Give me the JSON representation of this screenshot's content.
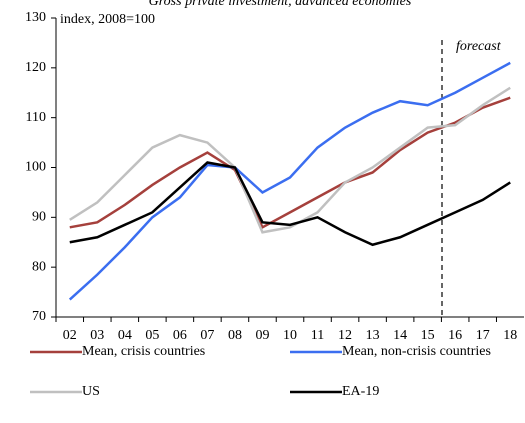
{
  "chart_data": {
    "type": "line",
    "title": "Gross private investment, advanced economies",
    "y_label": "index, 2008=100",
    "annotation": "forecast",
    "categories": [
      "02",
      "03",
      "04",
      "05",
      "06",
      "07",
      "08",
      "09",
      "10",
      "11",
      "12",
      "13",
      "14",
      "15",
      "16",
      "17",
      "18"
    ],
    "series": [
      {
        "name": "Mean, crisis countries",
        "color": "#a5403c",
        "values": [
          88,
          89,
          92.5,
          96.5,
          100,
          103,
          99.5,
          88,
          91,
          94,
          97,
          99,
          103.5,
          107,
          109,
          112,
          114
        ]
      },
      {
        "name": "Mean, non-crisis countries",
        "color": "#3b6ef0",
        "values": [
          73.5,
          78.5,
          84,
          90,
          94,
          100.5,
          100,
          95,
          98,
          104,
          108,
          111,
          113.3,
          112.5,
          115,
          118,
          121
        ]
      },
      {
        "name": "US",
        "color": "#c0c0c0",
        "values": [
          89.5,
          93,
          98.5,
          104,
          106.5,
          105,
          100,
          87,
          88,
          91,
          97,
          100,
          104,
          108,
          108.5,
          112.5,
          116
        ]
      },
      {
        "name": "EA-19",
        "color": "#000000",
        "values": [
          85,
          86,
          88.5,
          91,
          96,
          101,
          100,
          89,
          88.5,
          90,
          87,
          84.5,
          86,
          88.5,
          91,
          93.5,
          97
        ]
      }
    ],
    "ylim": [
      70,
      130
    ],
    "yticks": [
      70,
      80,
      90,
      100,
      110,
      120,
      130
    ]
  }
}
